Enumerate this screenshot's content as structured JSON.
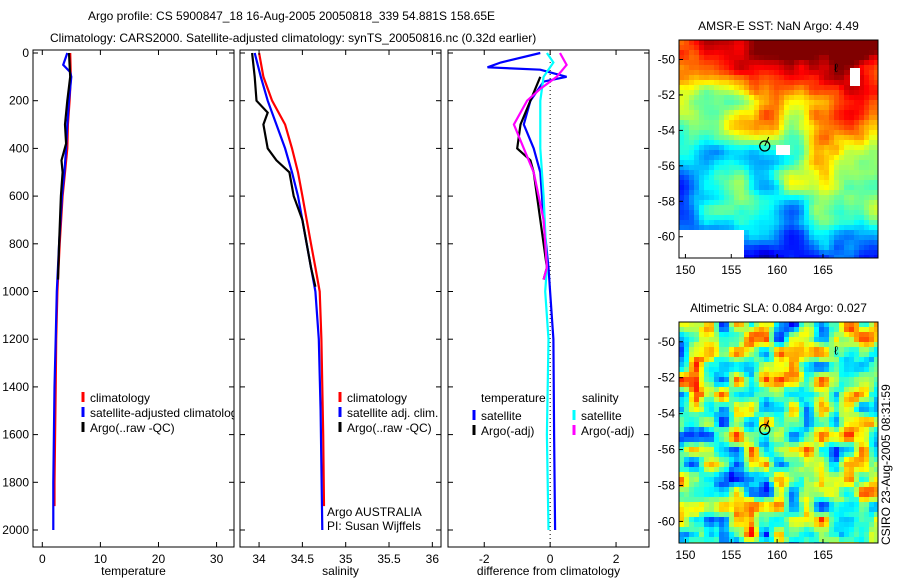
{
  "title": {
    "line1": "Argo profile: CS 5900847_18 16-Aug-2005 20050818_339 54.881S 158.65E",
    "line2": "Climatology: CARS2000. Satellite-adjusted climatology: synTS_20050816.nc (0.32d earlier)"
  },
  "footer_stamp": "CSIRO 23-Aug-2005 08:31:59",
  "colors": {
    "climatology": "#ff0000",
    "satellite": "#0000ff",
    "argo": "#000000",
    "sal_satellite": "#00ffff",
    "sal_argo": "#ff00ff"
  },
  "chart_data": [
    {
      "type": "line",
      "xlabel": "temperature",
      "ylabel": "",
      "xlim": [
        -1.6,
        33
      ],
      "ylim": [
        0,
        2080
      ],
      "yreversed": true,
      "xticks": [
        "0",
        "10",
        "20",
        "30"
      ],
      "yticks": [
        "0",
        "200",
        "400",
        "600",
        "800",
        "1000",
        "1200",
        "1400",
        "1600",
        "1800",
        "2000"
      ],
      "legend": {
        "placement": "lower-center",
        "entries": [
          "climatology",
          "satellite-adjusted climatology",
          "Argo(..raw -QC)"
        ]
      },
      "series": [
        {
          "name": "climatology",
          "color": "#ff0000",
          "points": [
            [
              4.8,
              0
            ],
            [
              4.9,
              100
            ],
            [
              4.7,
              200
            ],
            [
              4.4,
              300
            ],
            [
              4.3,
              400
            ],
            [
              3.9,
              500
            ],
            [
              3.5,
              600
            ],
            [
              3.0,
              800
            ],
            [
              2.6,
              1000
            ],
            [
              2.4,
              1200
            ],
            [
              2.3,
              1400
            ],
            [
              2.2,
              1600
            ],
            [
              2.1,
              1800
            ],
            [
              2.1,
              1900
            ]
          ]
        },
        {
          "name": "satellite-adjusted climatology",
          "color": "#0000ff",
          "points": [
            [
              4.3,
              0
            ],
            [
              3.6,
              50
            ],
            [
              4.8,
              80
            ],
            [
              5.0,
              100
            ],
            [
              4.6,
              200
            ],
            [
              4.3,
              300
            ],
            [
              4.1,
              400
            ],
            [
              3.8,
              500
            ],
            [
              3.4,
              600
            ],
            [
              2.9,
              800
            ],
            [
              2.5,
              1000
            ],
            [
              2.3,
              1200
            ],
            [
              2.1,
              1400
            ],
            [
              2.0,
              1600
            ],
            [
              1.9,
              1800
            ],
            [
              1.9,
              2000
            ]
          ]
        },
        {
          "name": "Argo(..raw -QC)",
          "color": "#000000",
          "points": [
            [
              4.6,
              0
            ],
            [
              4.8,
              100
            ],
            [
              4.3,
              200
            ],
            [
              3.9,
              300
            ],
            [
              4.1,
              380
            ],
            [
              3.3,
              450
            ],
            [
              3.5,
              500
            ],
            [
              3.2,
              600
            ],
            [
              2.9,
              800
            ],
            [
              2.7,
              950
            ]
          ]
        }
      ]
    },
    {
      "type": "line",
      "xlabel": "salinity",
      "xlim": [
        33.78,
        36.1
      ],
      "ylim": [
        0,
        2080
      ],
      "yreversed": true,
      "xticks": [
        "34",
        "34.5",
        "35",
        "35.5",
        "36"
      ],
      "legend": {
        "placement": "lower-center",
        "entries": [
          "climatology",
          "satellite adj. clim.",
          "Argo(..raw -QC)"
        ]
      },
      "annotation": [
        "Argo AUSTRALIA",
        "PI: Susan Wijffels"
      ],
      "series": [
        {
          "name": "climatology",
          "color": "#ff0000",
          "points": [
            [
              34.0,
              0
            ],
            [
              34.05,
              100
            ],
            [
              34.15,
              200
            ],
            [
              34.3,
              300
            ],
            [
              34.38,
              400
            ],
            [
              34.45,
              500
            ],
            [
              34.5,
              600
            ],
            [
              34.55,
              700
            ],
            [
              34.6,
              800
            ],
            [
              34.65,
              900
            ],
            [
              34.7,
              1000
            ],
            [
              34.72,
              1200
            ],
            [
              34.73,
              1400
            ],
            [
              34.74,
              1600
            ],
            [
              34.75,
              1900
            ]
          ]
        },
        {
          "name": "satellite adj. clim.",
          "color": "#0000ff",
          "points": [
            [
              33.95,
              0
            ],
            [
              34.02,
              100
            ],
            [
              34.1,
              200
            ],
            [
              34.2,
              300
            ],
            [
              34.3,
              400
            ],
            [
              34.38,
              500
            ],
            [
              34.45,
              600
            ],
            [
              34.55,
              800
            ],
            [
              34.65,
              1000
            ],
            [
              34.69,
              1200
            ],
            [
              34.71,
              1500
            ],
            [
              34.73,
              2000
            ]
          ]
        },
        {
          "name": "Argo(..raw -QC)",
          "color": "#000000",
          "points": [
            [
              33.92,
              0
            ],
            [
              33.95,
              100
            ],
            [
              33.97,
              200
            ],
            [
              34.1,
              250
            ],
            [
              34.05,
              300
            ],
            [
              34.1,
              400
            ],
            [
              34.2,
              450
            ],
            [
              34.35,
              500
            ],
            [
              34.4,
              600
            ],
            [
              34.5,
              700
            ],
            [
              34.55,
              800
            ],
            [
              34.6,
              900
            ],
            [
              34.65,
              980
            ]
          ]
        }
      ]
    },
    {
      "type": "line",
      "xlabel": "difference from climatology",
      "xlim": [
        -3.1,
        3.0
      ],
      "ylim": [
        0,
        2080
      ],
      "yreversed": true,
      "xticks": [
        "-2",
        "0",
        "2"
      ],
      "legend": {
        "placement": "lower-center",
        "groups": [
          "temperature",
          "salinity"
        ],
        "entries": [
          "satellite",
          "Argo(-adj)",
          "satellite",
          "Argo(-adj)"
        ]
      },
      "series": [
        {
          "name": "temperature satellite",
          "color": "#0000ff",
          "points": [
            [
              -0.3,
              0
            ],
            [
              -1.5,
              40
            ],
            [
              -1.9,
              60
            ],
            [
              -0.3,
              70
            ],
            [
              0.5,
              100
            ],
            [
              -0.2,
              120
            ],
            [
              -0.6,
              200
            ],
            [
              -0.8,
              300
            ],
            [
              -0.5,
              400
            ],
            [
              -0.3,
              500
            ],
            [
              -0.2,
              700
            ],
            [
              -0.05,
              900
            ],
            [
              0,
              1000
            ],
            [
              0.1,
              1200
            ],
            [
              0.12,
              1600
            ],
            [
              0.15,
              2000
            ]
          ]
        },
        {
          "name": "temperature Argo(-adj)",
          "color": "#000000",
          "points": [
            [
              -0.3,
              100
            ],
            [
              -0.6,
              200
            ],
            [
              -0.9,
              300
            ],
            [
              -1.0,
              400
            ],
            [
              -0.6,
              450
            ],
            [
              -0.5,
              500
            ],
            [
              -0.3,
              700
            ],
            [
              -0.1,
              900
            ],
            [
              -0.2,
              950
            ]
          ]
        },
        {
          "name": "salinity satellite",
          "color": "#00ffff",
          "points": [
            [
              -0.1,
              0
            ],
            [
              0.1,
              40
            ],
            [
              -0.2,
              100
            ],
            [
              -0.3,
              200
            ],
            [
              -0.3,
              400
            ],
            [
              -0.2,
              600
            ],
            [
              -0.1,
              900
            ],
            [
              -0.15,
              1000
            ],
            [
              -0.05,
              1200
            ],
            [
              -0.1,
              1600
            ],
            [
              -0.05,
              2000
            ]
          ]
        },
        {
          "name": "salinity Argo(-adj)",
          "color": "#ff00ff",
          "points": [
            [
              0.3,
              0
            ],
            [
              0.5,
              50
            ],
            [
              0.2,
              100
            ],
            [
              -0.3,
              150
            ],
            [
              -0.7,
              200
            ],
            [
              -1.1,
              300
            ],
            [
              -0.8,
              400
            ],
            [
              -0.5,
              500
            ],
            [
              -0.2,
              700
            ],
            [
              -0.1,
              900
            ],
            [
              -0.2,
              950
            ]
          ]
        }
      ]
    },
    {
      "type": "heatmap",
      "title": "AMSR-E SST: NaN Argo: 4.49",
      "xlim": [
        149.3,
        171
      ],
      "ylim": [
        -61.2,
        -48.9
      ],
      "xticks": [
        "150",
        "155",
        "160",
        "165"
      ],
      "yticks": [
        "-50",
        "-52",
        "-54",
        "-56",
        "-58",
        "-60"
      ],
      "marker": {
        "lon": 158.65,
        "lat": -54.881
      }
    },
    {
      "type": "heatmap",
      "title": "Altimetric SLA: 0.084 Argo: 0.027",
      "xlim": [
        149.3,
        171
      ],
      "ylim": [
        -61.2,
        -48.9
      ],
      "xticks": [
        "150",
        "155",
        "160",
        "165"
      ],
      "yticks": [
        "-50",
        "-52",
        "-54",
        "-56",
        "-58",
        "-60"
      ],
      "marker": {
        "lon": 158.65,
        "lat": -54.881
      }
    }
  ]
}
